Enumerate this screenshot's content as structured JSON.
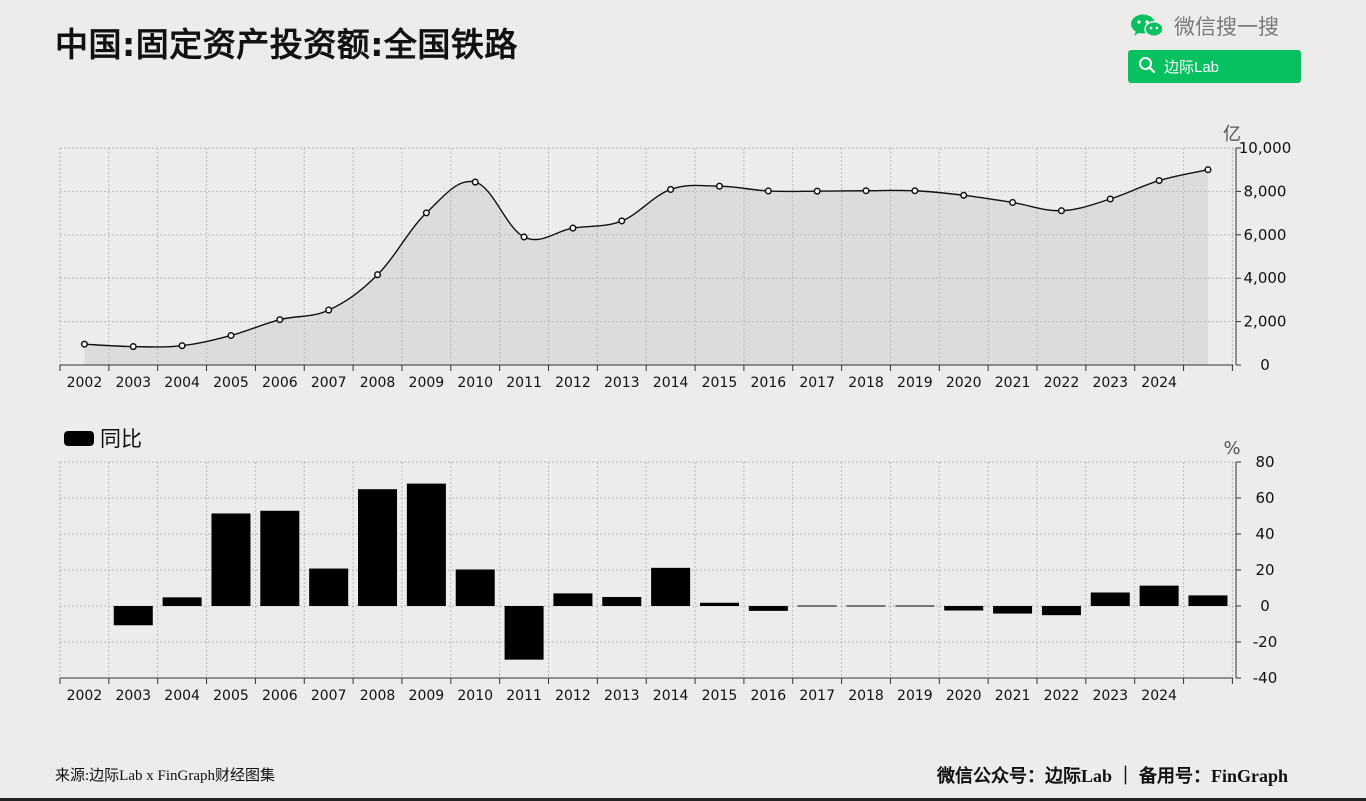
{
  "title": "中国:固定资产投资额:全国铁路",
  "brand": {
    "search_text": "微信搜一搜",
    "button_label": "边际Lab",
    "accent_color": "#07c160",
    "icons": [
      "wechat-icon",
      "search-icon"
    ]
  },
  "footer": {
    "source": "来源:边际Lab x FinGraph财经图集",
    "account": "微信公众号：边际Lab ｜ 备用号：FinGraph"
  },
  "chart_data": [
    {
      "type": "area",
      "unit_label": "亿",
      "x": [
        "2002",
        "2003",
        "2004",
        "2005",
        "2006",
        "2007",
        "2008",
        "2009",
        "2010",
        "2011",
        "2012",
        "2013",
        "2014",
        "2015",
        "2016",
        "2017",
        "2018",
        "2019",
        "2020",
        "2021",
        "2022",
        "2023",
        "2024",
        "2025"
      ],
      "x_tick_labels": [
        "2002",
        "2003",
        "2004",
        "2005",
        "2006",
        "2007",
        "2008",
        "2009",
        "2010",
        "2011",
        "2012",
        "2013",
        "2014",
        "2015",
        "2016",
        "2017",
        "2018",
        "2019",
        "2020",
        "2021",
        "2022",
        "2023",
        "2024"
      ],
      "values": [
        960,
        850,
        890,
        1360,
        2090,
        2530,
        4160,
        7010,
        8430,
        5900,
        6310,
        6640,
        8090,
        8240,
        8020,
        8010,
        8030,
        8030,
        7820,
        7490,
        7110,
        7650,
        8500,
        9000
      ],
      "ylim": [
        0,
        10000
      ],
      "yticks": [
        0,
        2000,
        4000,
        6000,
        8000,
        10000
      ],
      "ytick_labels": [
        "0",
        "2,000",
        "4,000",
        "6,000",
        "8,000",
        "10,000"
      ],
      "grid": true,
      "colors": {
        "line": "#111111",
        "fill": "#dcdcdc",
        "marker_fill": "#ffffff"
      }
    },
    {
      "type": "bar",
      "unit_label": "%",
      "legend": [
        {
          "name": "同比",
          "color": "#000000"
        }
      ],
      "legend_position": "top-left",
      "x": [
        "2002",
        "2003",
        "2004",
        "2005",
        "2006",
        "2007",
        "2008",
        "2009",
        "2010",
        "2011",
        "2012",
        "2013",
        "2014",
        "2015",
        "2016",
        "2017",
        "2018",
        "2019",
        "2020",
        "2021",
        "2022",
        "2023",
        "2024",
        "2025"
      ],
      "x_tick_labels": [
        "2002",
        "2003",
        "2004",
        "2005",
        "2006",
        "2007",
        "2008",
        "2009",
        "2010",
        "2011",
        "2012",
        "2013",
        "2014",
        "2015",
        "2016",
        "2017",
        "2018",
        "2019",
        "2020",
        "2021",
        "2022",
        "2023",
        "2024"
      ],
      "series": [
        {
          "name": "同比",
          "values": [
            null,
            -10.7,
            4.8,
            51.4,
            52.9,
            20.8,
            64.9,
            68.0,
            20.3,
            -29.8,
            7.0,
            5.0,
            21.2,
            1.8,
            -2.7,
            -0.1,
            0.3,
            0.0,
            -2.5,
            -4.2,
            -5.1,
            7.5,
            11.3,
            5.9
          ]
        }
      ],
      "ylim": [
        -40,
        80
      ],
      "yticks": [
        -40,
        -20,
        0,
        20,
        40,
        60,
        80
      ],
      "ytick_labels": [
        "-40",
        "-20",
        "0",
        "20",
        "40",
        "60",
        "80"
      ],
      "grid": true,
      "colors": {
        "bar": "#000000"
      }
    }
  ]
}
